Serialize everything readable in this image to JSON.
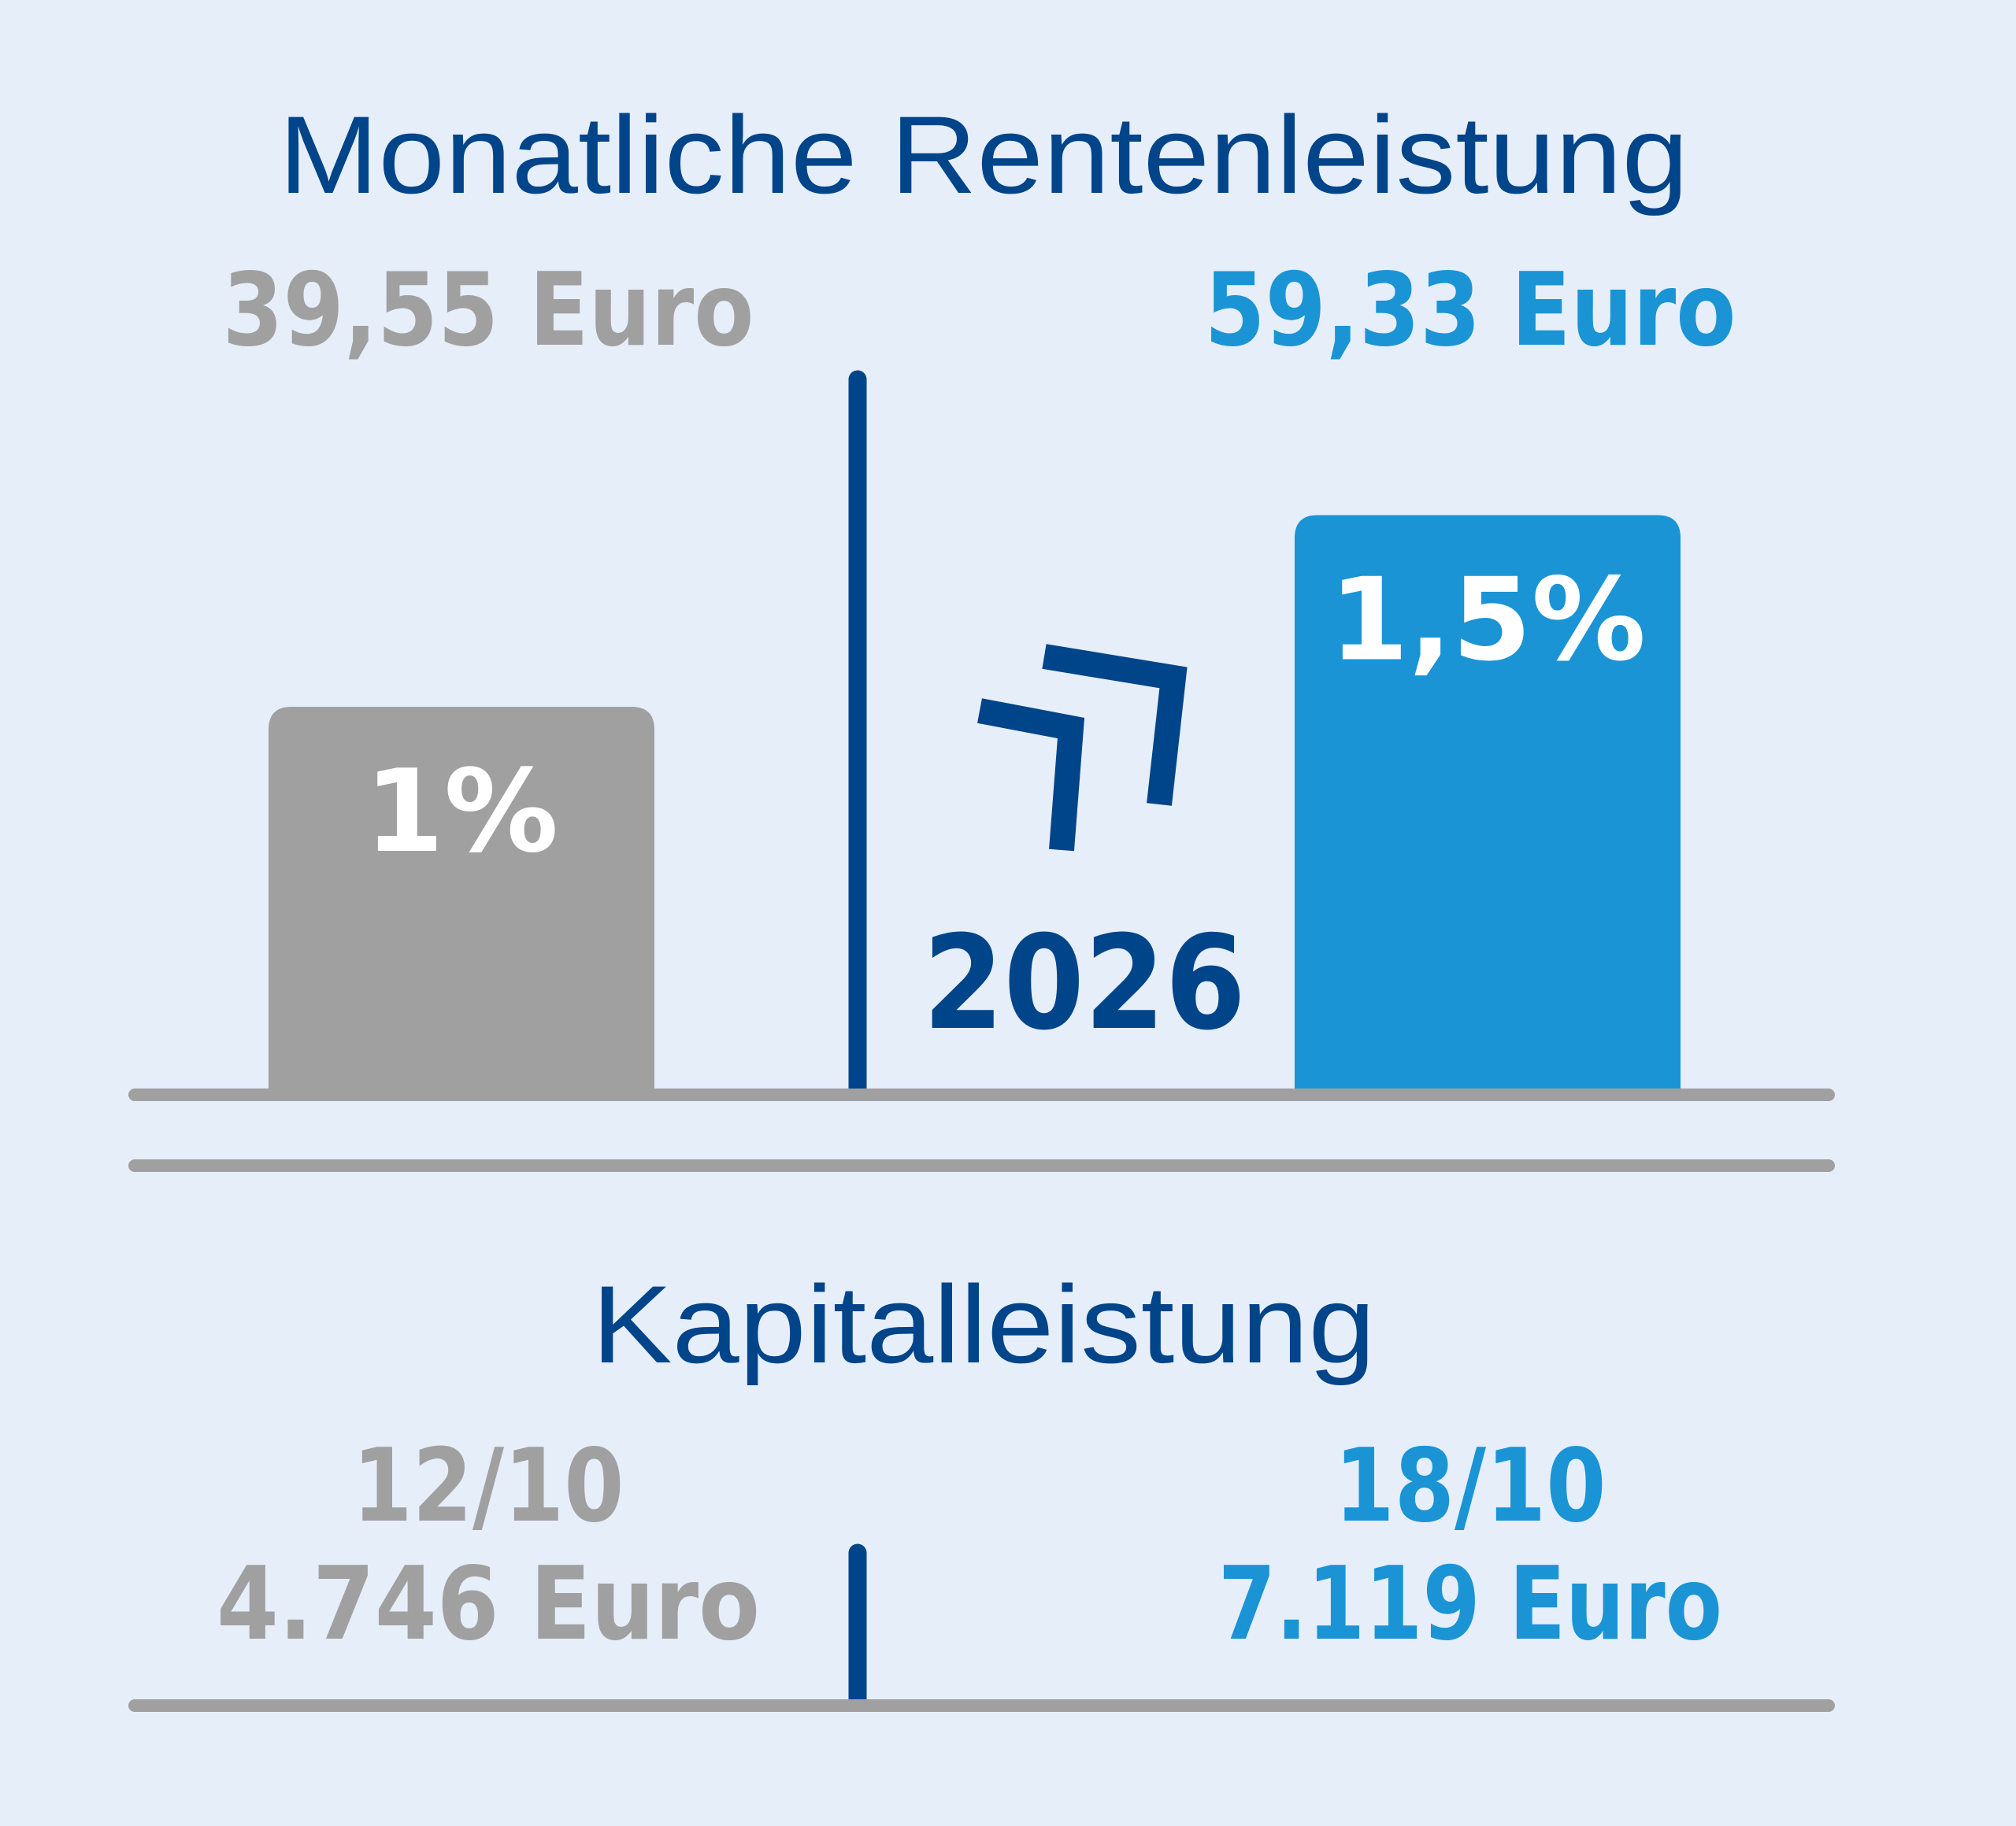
{
  "rente": {
    "title": "Monatliche Rentenleistung",
    "left": {
      "amount": "39,55 Euro",
      "rate": 1,
      "rate_label": "1%"
    },
    "right": {
      "amount": "59,33 Euro",
      "rate": 1.5,
      "rate_label": "1,5%"
    },
    "year": "2026"
  },
  "kapital": {
    "title": "Kapitalleistung",
    "left": {
      "ratio": "12/10",
      "amount": "4.746 Euro"
    },
    "right": {
      "ratio": "18/10",
      "amount": "7.119 Euro"
    }
  }
}
